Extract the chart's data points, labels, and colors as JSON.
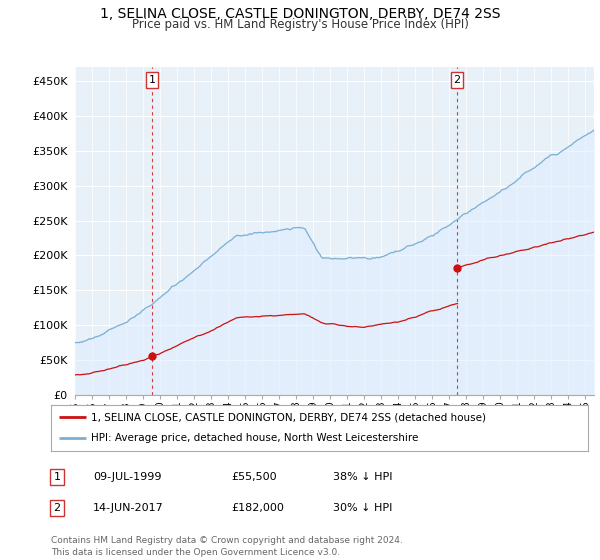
{
  "title": "1, SELINA CLOSE, CASTLE DONINGTON, DERBY, DE74 2SS",
  "subtitle": "Price paid vs. HM Land Registry's House Price Index (HPI)",
  "ylabel_ticks": [
    "£0",
    "£50K",
    "£100K",
    "£150K",
    "£200K",
    "£250K",
    "£300K",
    "£350K",
    "£400K",
    "£450K"
  ],
  "ytick_values": [
    0,
    50000,
    100000,
    150000,
    200000,
    250000,
    300000,
    350000,
    400000,
    450000
  ],
  "ylim": [
    0,
    470000
  ],
  "xlim_start": 1995.3,
  "xlim_end": 2025.5,
  "hpi_color": "#7bafd4",
  "hpi_fill_color": "#ddeeff",
  "price_color": "#cc1111",
  "marker1_year": 1999.53,
  "marker1_price": 55500,
  "marker2_year": 2017.45,
  "marker2_price": 182000,
  "legend_label1": "1, SELINA CLOSE, CASTLE DONINGTON, DERBY, DE74 2SS (detached house)",
  "legend_label2": "HPI: Average price, detached house, North West Leicestershire",
  "note1_date": "09-JUL-1999",
  "note1_price": "£55,500",
  "note1_hpi": "38% ↓ HPI",
  "note2_date": "14-JUN-2017",
  "note2_price": "£182,000",
  "note2_hpi": "30% ↓ HPI",
  "footer": "Contains HM Land Registry data © Crown copyright and database right 2024.\nThis data is licensed under the Open Government Licence v3.0.",
  "background_color": "#ffffff",
  "chart_bg_color": "#e8f0f8",
  "grid_color": "#ffffff"
}
